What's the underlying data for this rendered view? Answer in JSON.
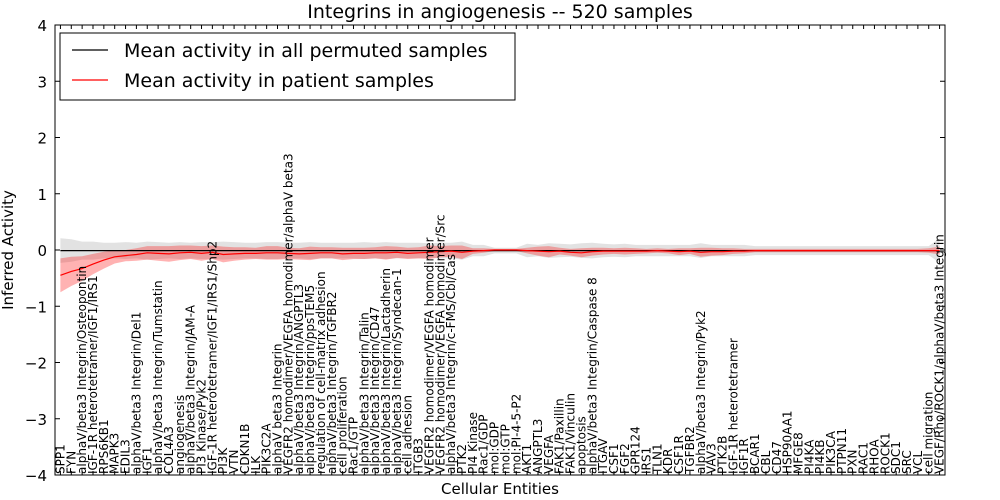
{
  "chart_data": {
    "type": "line",
    "title": "Integrins in angiogenesis -- 520 samples",
    "xlabel": "Cellular Entities",
    "ylabel": "Inferred Activity",
    "ylim": [
      -4,
      4
    ],
    "yticks": [
      "−4",
      "−3",
      "−2",
      "−1",
      "0",
      "1",
      "2",
      "3",
      "4"
    ],
    "legend_position": "top-left",
    "categories": [
      "SPP1",
      "FYN",
      "alphaV/beta3 Integrin/Osteopontin",
      "IGF-1R heterotetramer/IGF1/IRS1",
      "RPS6KB1",
      "MAPK3",
      "EDIL3",
      "alphaV/beta3 Integrin/Del1",
      "IGF1",
      "alphaV/beta3 Integrin/Tumstatin",
      "COL4A3",
      "angiogenesis",
      "alphaV/beta3 Integrin/JAM-A",
      "PI3 Kinase/Pyk2",
      "IGF-1R heterotetramer/IGF1/IRS1/Shp2",
      "PI3K",
      "VTN",
      "CDKN1B",
      "ILK",
      "PIK3C2A",
      "alphaV beta3 Integrin",
      "VEGFR2 homodimer/VEGFA homodimer/alphaV beta3",
      "alphaV/beta3 Integrin/ANGPTL3",
      "alphaV/beta3 Integrin/ppsTEM5",
      "regulation of cell-matrix adhesion",
      "alphaV/beta3 Integrin/TGFBR2",
      "cell proliferation",
      "Rac1/GTP",
      "alphaV/beta3 Integrin/Talin",
      "alphaV/beta3 Integrin/CD47",
      "alphaV/beta3 Integrin/Lactadherin",
      "alphaV/beta3 Integrin/Syndecan-1",
      "cell adhesion",
      "ITGB3",
      "VEGFR2 homodimer/VEGFA homodimer",
      "VEGFR2 homodimer/VEGFA homodimer/Src",
      "alphaV/beta3 Integrin/c-FMS/Cbl/Cas",
      "PTK2",
      "PI4 Kinase",
      "Rac1/GDP",
      "mol:GDP",
      "mol:GTP",
      "mol:PI-4-5-P2",
      "AKT1",
      "ANGPTL3",
      "VEGFA",
      "FAK1/Paxillin",
      "FAK1/Vinculin",
      "apoptosis",
      "alphaV/beta3 Integrin/Caspase 8",
      "ITGAV",
      "CSF1",
      "FGF2",
      "GPR124",
      "IRS1",
      "TLN1",
      "KDR",
      "CSF1R",
      "TGFBR2",
      "alphaV/beta3 Integrin/Pyk2",
      "VAV3",
      "PTK2B",
      "IGF-1R heterotetramer",
      "IGF1R",
      "BCAR1",
      "CBL",
      "CD47",
      "HSP90AA1",
      "MFGE8",
      "PI4KA",
      "PI4KB",
      "PIK3CA",
      "PTPN11",
      "PXN",
      "RAC1",
      "RHOA",
      "ROCK1",
      "SDC1",
      "SRC",
      "VCL",
      "cell migration",
      "VEGF/Rho/ROCK1/alphaV/beta3 Integrin"
    ],
    "series": [
      {
        "name": "Mean activity in all permuted samples",
        "color": "#000000",
        "values": [
          -0.01,
          -0.01,
          -0.01,
          -0.01,
          -0.01,
          -0.01,
          -0.01,
          -0.01,
          -0.01,
          -0.01,
          -0.01,
          -0.01,
          -0.01,
          -0.01,
          -0.01,
          -0.01,
          -0.01,
          -0.01,
          -0.01,
          -0.01,
          -0.01,
          -0.01,
          -0.01,
          -0.01,
          -0.01,
          -0.01,
          -0.01,
          -0.01,
          -0.01,
          -0.01,
          -0.01,
          -0.01,
          -0.01,
          -0.01,
          -0.01,
          -0.01,
          -0.01,
          -0.01,
          -0.01,
          -0.01,
          -0.01,
          -0.01,
          -0.01,
          -0.01,
          -0.01,
          -0.01,
          -0.01,
          -0.01,
          -0.01,
          -0.01,
          -0.01,
          -0.01,
          -0.01,
          -0.01,
          -0.01,
          -0.01,
          -0.01,
          -0.01,
          -0.01,
          -0.01,
          -0.01,
          -0.01,
          -0.01,
          -0.01,
          -0.01,
          -0.01,
          -0.01,
          -0.01,
          -0.01,
          -0.01,
          -0.01,
          -0.01,
          -0.01,
          -0.01,
          -0.01,
          -0.01,
          -0.01,
          -0.01,
          -0.01,
          -0.01,
          -0.01,
          -0.01
        ],
        "band": [
          0.22,
          0.2,
          0.16,
          0.16,
          0.14,
          0.14,
          0.15,
          0.14,
          0.16,
          0.15,
          0.14,
          0.15,
          0.14,
          0.15,
          0.15,
          0.16,
          0.15,
          0.14,
          0.14,
          0.15,
          0.15,
          0.14,
          0.14,
          0.15,
          0.14,
          0.14,
          0.14,
          0.14,
          0.15,
          0.14,
          0.15,
          0.14,
          0.14,
          0.14,
          0.13,
          0.14,
          0.14,
          0.16,
          0.1,
          0.1,
          0.05,
          0.05,
          0.05,
          0.12,
          0.1,
          0.13,
          0.12,
          0.11,
          0.13,
          0.14,
          0.12,
          0.11,
          0.12,
          0.1,
          0.1,
          0.1,
          0.1,
          0.1,
          0.1,
          0.13,
          0.1,
          0.1,
          0.1,
          0.1,
          0.08,
          0.08,
          0.08,
          0.08,
          0.08,
          0.08,
          0.08,
          0.08,
          0.08,
          0.08,
          0.08,
          0.08,
          0.08,
          0.08,
          0.08,
          0.08,
          0.08,
          0.22
        ]
      },
      {
        "name": "Mean activity in patient samples",
        "color": "#ff0000",
        "values": [
          -0.45,
          -0.38,
          -0.33,
          -0.25,
          -0.18,
          -0.12,
          -0.1,
          -0.08,
          -0.05,
          -0.06,
          -0.07,
          -0.05,
          -0.04,
          -0.06,
          -0.04,
          -0.08,
          -0.07,
          -0.06,
          -0.06,
          -0.05,
          -0.05,
          -0.06,
          -0.07,
          -0.06,
          -0.05,
          -0.05,
          -0.07,
          -0.06,
          -0.06,
          -0.05,
          -0.05,
          -0.04,
          -0.06,
          -0.05,
          -0.04,
          -0.03,
          -0.02,
          -0.04,
          -0.02,
          -0.01,
          0.0,
          0.0,
          0.0,
          -0.01,
          -0.02,
          -0.03,
          -0.02,
          -0.04,
          -0.05,
          -0.03,
          -0.02,
          -0.02,
          -0.02,
          -0.02,
          -0.02,
          -0.01,
          -0.02,
          -0.03,
          -0.02,
          -0.04,
          -0.03,
          -0.03,
          -0.02,
          -0.02,
          -0.01,
          -0.01,
          -0.01,
          -0.01,
          -0.01,
          -0.01,
          -0.01,
          -0.01,
          -0.01,
          -0.01,
          -0.01,
          -0.01,
          -0.01,
          -0.01,
          -0.01,
          -0.01,
          -0.01,
          -0.01
        ],
        "band": [
          0.3,
          0.26,
          0.22,
          0.18,
          0.15,
          0.12,
          0.1,
          0.11,
          0.12,
          0.13,
          0.14,
          0.13,
          0.12,
          0.13,
          0.12,
          0.14,
          0.12,
          0.11,
          0.1,
          0.12,
          0.12,
          0.1,
          0.1,
          0.12,
          0.1,
          0.1,
          0.11,
          0.1,
          0.1,
          0.1,
          0.12,
          0.1,
          0.1,
          0.1,
          0.12,
          0.1,
          0.1,
          0.12,
          0.05,
          0.04,
          0.02,
          0.02,
          0.02,
          0.05,
          0.08,
          0.1,
          0.06,
          0.06,
          0.08,
          0.07,
          0.06,
          0.05,
          0.06,
          0.05,
          0.04,
          0.04,
          0.04,
          0.06,
          0.05,
          0.08,
          0.07,
          0.06,
          0.05,
          0.04,
          0.03,
          0.03,
          0.03,
          0.03,
          0.03,
          0.03,
          0.03,
          0.03,
          0.03,
          0.03,
          0.03,
          0.03,
          0.03,
          0.03,
          0.03,
          0.03,
          0.04,
          0.07
        ]
      }
    ]
  }
}
